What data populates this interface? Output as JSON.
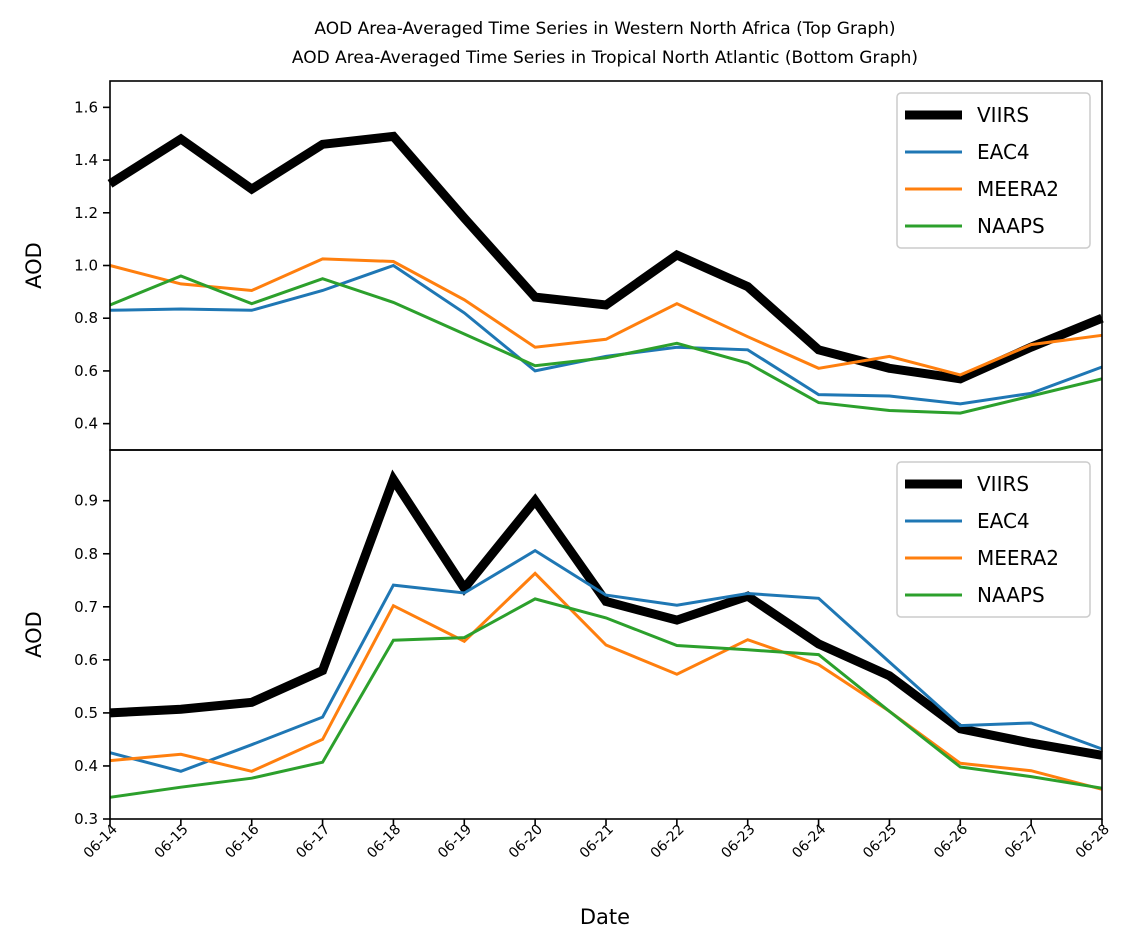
{
  "figure": {
    "title_line1": "AOD Area-Averaged Time Series in Western North Africa (Top Graph)",
    "title_line2": "AOD Area-Averaged Time Series in Tropical North Atlantic (Bottom Graph)",
    "xlabel": "Date"
  },
  "chart_data": [
    {
      "type": "line",
      "region": "Western North Africa",
      "x": [
        "06-14",
        "06-15",
        "06-16",
        "06-17",
        "06-18",
        "06-19",
        "06-20",
        "06-21",
        "06-22",
        "06-23",
        "06-24",
        "06-25",
        "06-26",
        "06-27",
        "06-28"
      ],
      "ylabel": "AOD",
      "ylim": [
        0.3,
        1.7
      ],
      "yticks": [
        0.4,
        0.6,
        0.8,
        1.0,
        1.2,
        1.4,
        1.6
      ],
      "ytick_labels": [
        "0.4",
        "0.6",
        "0.8",
        "1.0",
        "1.2",
        "1.4",
        "1.6"
      ],
      "grid": false,
      "legend_position": "top-right",
      "series": [
        {
          "name": "VIIRS",
          "color": "#000000",
          "emphasis": "thick",
          "values": [
            1.31,
            1.48,
            1.29,
            1.46,
            1.49,
            1.18,
            0.88,
            0.85,
            1.04,
            0.92,
            0.68,
            0.61,
            0.57,
            0.69,
            0.8
          ]
        },
        {
          "name": "EAC4",
          "color": "#1f77b4",
          "values": [
            0.83,
            0.835,
            0.83,
            0.905,
            1.0,
            0.82,
            0.6,
            0.655,
            0.69,
            0.68,
            0.51,
            0.505,
            0.475,
            0.515,
            0.615
          ]
        },
        {
          "name": "MEERA2",
          "color": "#ff7f0e",
          "values": [
            1.0,
            0.93,
            0.905,
            1.025,
            1.015,
            0.87,
            0.69,
            0.72,
            0.855,
            0.73,
            0.61,
            0.655,
            0.585,
            0.7,
            0.735
          ]
        },
        {
          "name": "NAAPS",
          "color": "#2ca02c",
          "values": [
            0.85,
            0.96,
            0.855,
            0.95,
            0.86,
            0.74,
            0.62,
            0.65,
            0.705,
            0.63,
            0.48,
            0.45,
            0.44,
            0.505,
            0.57
          ]
        }
      ]
    },
    {
      "type": "line",
      "region": "Tropical North Atlantic",
      "x": [
        "06-14",
        "06-15",
        "06-16",
        "06-17",
        "06-18",
        "06-19",
        "06-20",
        "06-21",
        "06-22",
        "06-23",
        "06-24",
        "06-25",
        "06-26",
        "06-27",
        "06-28"
      ],
      "ylabel": "AOD",
      "ylim": [
        0.3,
        0.9956
      ],
      "yticks": [
        0.3,
        0.4,
        0.5,
        0.6,
        0.7,
        0.8,
        0.9
      ],
      "ytick_labels": [
        "0.3",
        "0.4",
        "0.5",
        "0.6",
        "0.7",
        "0.8",
        "0.9"
      ],
      "grid": false,
      "legend_position": "top-right",
      "series": [
        {
          "name": "VIIRS",
          "color": "#000000",
          "emphasis": "thick",
          "values": [
            0.5,
            0.507,
            0.52,
            0.58,
            0.94,
            0.735,
            0.9,
            0.71,
            0.675,
            0.72,
            0.63,
            0.57,
            0.47,
            0.443,
            0.42
          ]
        },
        {
          "name": "EAC4",
          "color": "#1f77b4",
          "values": [
            0.425,
            0.39,
            0.44,
            0.492,
            0.741,
            0.726,
            0.806,
            0.722,
            0.703,
            0.725,
            0.716,
            0.596,
            0.476,
            0.481,
            0.432
          ]
        },
        {
          "name": "MEERA2",
          "color": "#ff7f0e",
          "values": [
            0.41,
            0.422,
            0.39,
            0.45,
            0.702,
            0.635,
            0.763,
            0.628,
            0.573,
            0.638,
            0.591,
            0.503,
            0.405,
            0.391,
            0.356
          ]
        },
        {
          "name": "NAAPS",
          "color": "#2ca02c",
          "values": [
            0.341,
            0.36,
            0.377,
            0.407,
            0.637,
            0.642,
            0.715,
            0.679,
            0.627,
            0.619,
            0.61,
            0.503,
            0.398,
            0.38,
            0.358
          ]
        }
      ]
    }
  ]
}
